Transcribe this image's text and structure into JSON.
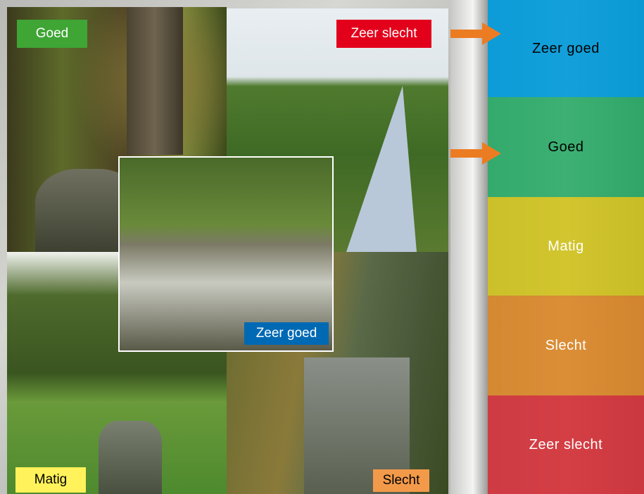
{
  "photos": [
    {
      "label": "Goed"
    },
    {
      "label": "Zeer slecht"
    },
    {
      "label": "Zeer goed"
    },
    {
      "label": "Matig"
    },
    {
      "label": "Slecht"
    }
  ],
  "scale": [
    {
      "label": "Zeer goed"
    },
    {
      "label": "Goed"
    },
    {
      "label": "Matig"
    },
    {
      "label": "Slecht"
    },
    {
      "label": "Zeer slecht"
    }
  ]
}
